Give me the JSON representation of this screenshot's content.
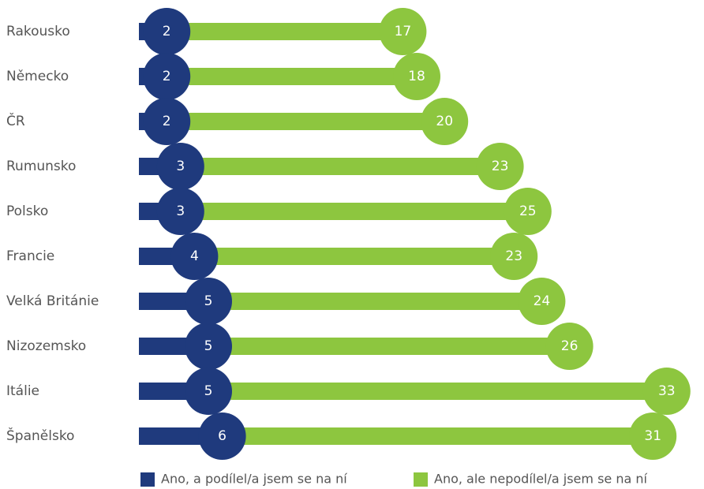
{
  "chart_data": {
    "type": "bar",
    "orientation": "horizontal",
    "stacked": true,
    "categories": [
      "Rakousko",
      "Německo",
      "ČR",
      "Rumunsko",
      "Polsko",
      "Francie",
      "Velká Británie",
      "Nizozemsko",
      "Itálie",
      "Španělsko"
    ],
    "series": [
      {
        "name": "Ano, a podílel/a jsem se na ní",
        "color": "#1f3a7d",
        "values": [
          2,
          2,
          2,
          3,
          3,
          4,
          5,
          5,
          5,
          6
        ]
      },
      {
        "name": "Ano, ale nepodílel/a jsem se na ní",
        "color": "#8dc63f",
        "values": [
          17,
          18,
          20,
          23,
          25,
          23,
          24,
          26,
          33,
          31
        ]
      }
    ],
    "legend": "bottom"
  }
}
